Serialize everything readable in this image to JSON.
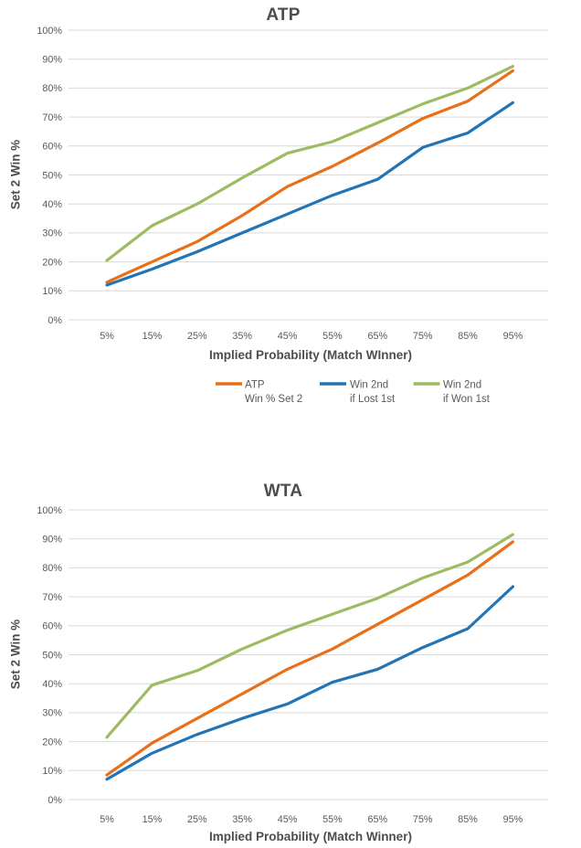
{
  "colors": {
    "series_orange": "#E8701A",
    "series_blue": "#2274B5",
    "series_green": "#9DBB61",
    "gridline": "#D9D9D9",
    "tick_text": "#595959",
    "title_text": "#4D4D4D"
  },
  "chart_data": [
    {
      "type": "line",
      "title": "ATP",
      "xlabel": "Implied Probability (Match WInner)",
      "ylabel": "Set 2 Win %",
      "x": [
        5,
        15,
        25,
        35,
        45,
        55,
        65,
        75,
        85,
        95
      ],
      "x_tick_labels": [
        "5%",
        "15%",
        "25%",
        "35%",
        "45%",
        "55%",
        "65%",
        "75%",
        "85%",
        "95%"
      ],
      "y_tick_labels": [
        "0%",
        "10%",
        "20%",
        "30%",
        "40%",
        "50%",
        "60%",
        "70%",
        "80%",
        "90%",
        "100%"
      ],
      "ylim": [
        0,
        100
      ],
      "grid": "horizontal",
      "legend_position": "bottom",
      "legend_visible": true,
      "series": [
        {
          "name": "ATP Win % Set 2",
          "legend_lines": [
            "ATP",
            "Win % Set 2"
          ],
          "color_key": "series_orange",
          "values": [
            13,
            20,
            27,
            36,
            46,
            53,
            61,
            69.5,
            75.5,
            86
          ]
        },
        {
          "name": "Win 2nd if Lost 1st",
          "legend_lines": [
            "Win 2nd",
            "if Lost 1st"
          ],
          "color_key": "series_blue",
          "values": [
            12,
            17.5,
            23.5,
            30,
            36.5,
            43,
            48.5,
            59.5,
            64.5,
            75
          ]
        },
        {
          "name": "Win 2nd if Won 1st",
          "legend_lines": [
            "Win 2nd",
            "if Won 1st"
          ],
          "color_key": "series_green",
          "values": [
            20.5,
            32.5,
            40,
            49,
            57.5,
            61.5,
            68,
            74.5,
            80,
            87.5
          ]
        }
      ]
    },
    {
      "type": "line",
      "title": "WTA",
      "xlabel": "Implied Probability (Match Winner)",
      "ylabel": "Set 2 Win %",
      "x": [
        5,
        15,
        25,
        35,
        45,
        55,
        65,
        75,
        85,
        95
      ],
      "x_tick_labels": [
        "5%",
        "15%",
        "25%",
        "35%",
        "45%",
        "55%",
        "65%",
        "75%",
        "85%",
        "95%"
      ],
      "y_tick_labels": [
        "0%",
        "10%",
        "20%",
        "30%",
        "40%",
        "50%",
        "60%",
        "70%",
        "80%",
        "90%",
        "100%"
      ],
      "ylim": [
        0,
        100
      ],
      "grid": "horizontal",
      "legend_visible": false,
      "series": [
        {
          "name": "Win % Set 2",
          "color_key": "series_orange",
          "values": [
            8.5,
            19.5,
            28,
            36.5,
            45,
            52,
            60.5,
            69,
            77.5,
            89
          ]
        },
        {
          "name": "Win 2nd if Lost 1st",
          "color_key": "series_blue",
          "values": [
            7,
            16,
            22.5,
            28,
            33,
            40.5,
            45,
            52.5,
            59,
            73.5
          ]
        },
        {
          "name": "Win 2nd if Won 1st",
          "color_key": "series_green",
          "values": [
            21.5,
            39.5,
            44.5,
            52,
            58.5,
            64,
            69.5,
            76.5,
            82,
            91.5
          ]
        }
      ]
    }
  ]
}
